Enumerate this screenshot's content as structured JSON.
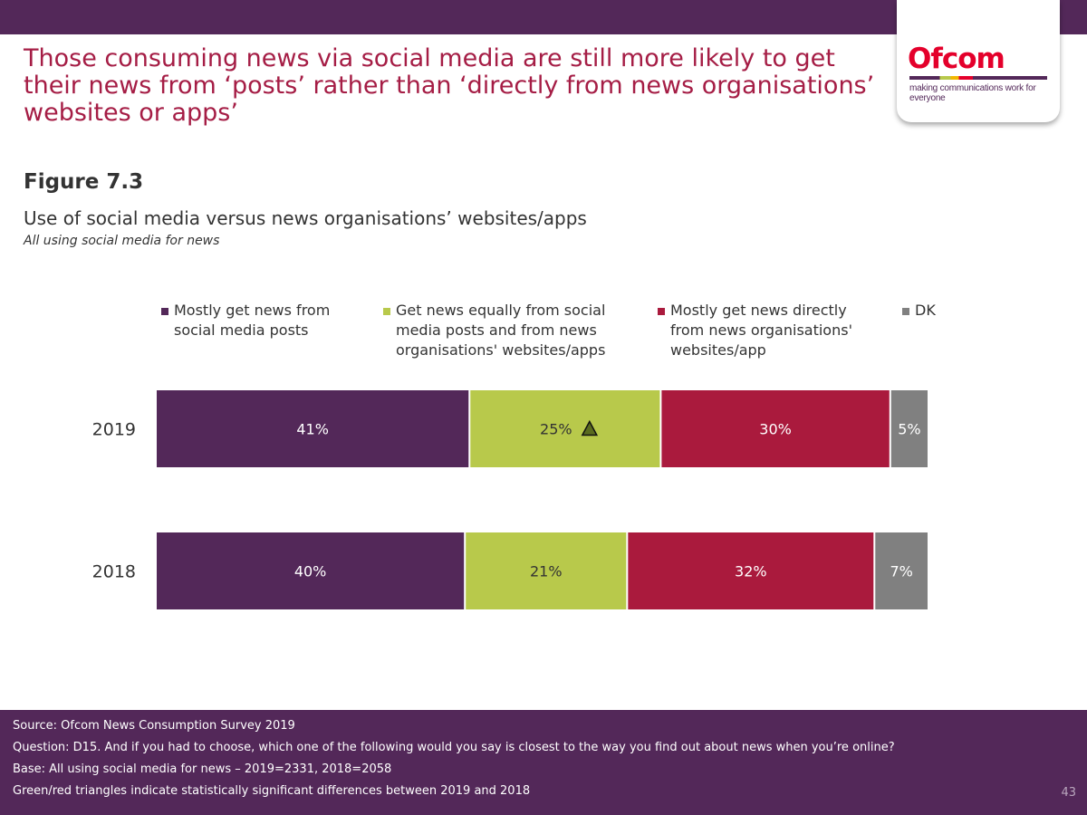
{
  "headline": "Those consuming news via social media are still more likely to get their news from ‘posts’ rather than ‘directly from news organisations’ websites or apps’",
  "logo": {
    "word": "Ofcom",
    "tagline": "making communications work for everyone"
  },
  "figure_label": "Figure 7.3",
  "chart_data": {
    "type": "bar",
    "orientation": "horizontal",
    "stacked": true,
    "title": "Use of social media versus news organisations’ websites/apps",
    "subtitle": "All using social media for news",
    "categories": [
      "2019",
      "2018"
    ],
    "series": [
      {
        "name": "Mostly get news from social media posts",
        "values": [
          41,
          40
        ],
        "labels": [
          "41%",
          "40%"
        ]
      },
      {
        "name": "Get news equally from social media posts and from news organisations' websites/apps",
        "values": [
          25,
          21
        ],
        "labels": [
          "25%",
          "21%"
        ]
      },
      {
        "name": "Mostly get news directly from news organisations' websites/app",
        "values": [
          30,
          32
        ],
        "labels": [
          "30%",
          "32%"
        ]
      },
      {
        "name": "DK",
        "values": [
          5,
          7
        ],
        "labels": [
          "5%",
          "7%"
        ]
      }
    ],
    "significance": [
      {
        "category": "2019",
        "series": 1,
        "direction": "up"
      }
    ],
    "colors": [
      "#532859",
      "#b8c94b",
      "#aa1a3d",
      "#808080"
    ],
    "legend_position": "top",
    "grid": false
  },
  "footer": {
    "source": "Source: Ofcom News Consumption Survey 2019",
    "question": "Question: D15. And if you had to choose, which one of the following would you say is closest to the way you find out about news when you’re online?",
    "base": "Base: All using social media for news – 2019=2331, 2018=2058",
    "note": "Green/red triangles indicate statistically significant differences between 2019 and 2018",
    "page_number": "43"
  }
}
